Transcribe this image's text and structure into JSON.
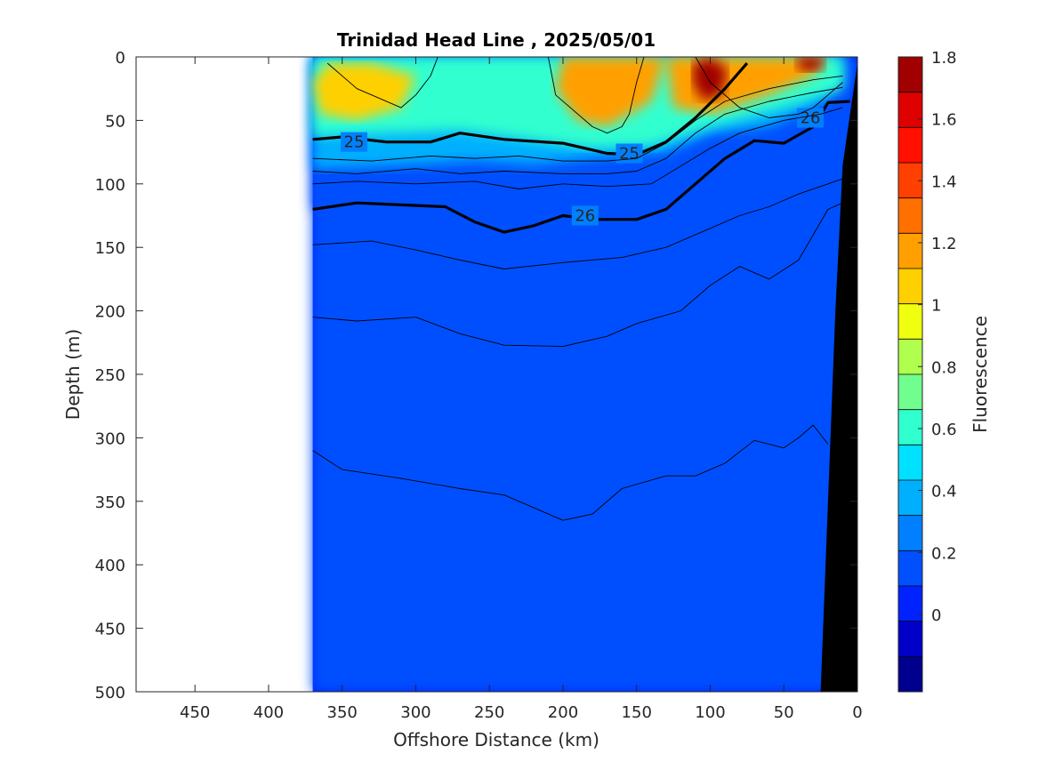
{
  "chart_data": {
    "type": "heatmap",
    "title": "Trinidad Head Line , 2025/05/01",
    "xlabel": "Offshore Distance (km)",
    "ylabel": "Depth (m)",
    "xlim": [
      490,
      0
    ],
    "ylim": [
      0,
      500
    ],
    "x_reversed": true,
    "y_reversed": true,
    "x_ticks": [
      "450",
      "400",
      "350",
      "300",
      "250",
      "200",
      "150",
      "100",
      "50",
      "0"
    ],
    "y_ticks": [
      "0",
      "50",
      "100",
      "150",
      "200",
      "250",
      "300",
      "350",
      "400",
      "450",
      "500"
    ],
    "data_extent_km": [
      370,
      0
    ],
    "colorbar": {
      "label": "Fluorescence",
      "range": [
        -0.25,
        1.8
      ],
      "ticks": [
        "1.8",
        "1.6",
        "1.4",
        "1.2",
        "1",
        "0.8",
        "0.6",
        "0.4",
        "0.2",
        "0"
      ],
      "colors": [
        "#00008f",
        "#0000c8",
        "#0022ff",
        "#0050ff",
        "#0080ff",
        "#00b0ff",
        "#00e0ff",
        "#30ffcf",
        "#70ff8f",
        "#b0ff4f",
        "#f0ff0f",
        "#ffd000",
        "#ffa000",
        "#ff7000",
        "#ff4000",
        "#ff1000",
        "#df0000",
        "#a00000"
      ]
    },
    "fill_regions": [
      {
        "name": "background",
        "value": 0.05,
        "outline": [
          [
            370,
            0
          ],
          [
            0,
            0
          ],
          [
            0,
            500
          ],
          [
            370,
            500
          ]
        ]
      },
      {
        "name": "deep-layer",
        "value": 0.1,
        "outline": [
          [
            370,
            0
          ],
          [
            0,
            0
          ],
          [
            0,
            500
          ],
          [
            370,
            500
          ]
        ]
      },
      {
        "name": "upper-mixed-layer",
        "value": 0.2,
        "outline": [
          [
            370,
            0
          ],
          [
            0,
            0
          ],
          [
            10,
            15
          ],
          [
            15,
            35
          ],
          [
            30,
            45
          ],
          [
            50,
            65
          ],
          [
            80,
            65
          ],
          [
            100,
            90
          ],
          [
            120,
            110
          ],
          [
            140,
            130
          ],
          [
            180,
            132
          ],
          [
            220,
            138
          ],
          [
            250,
            140
          ],
          [
            290,
            120
          ],
          [
            330,
            118
          ],
          [
            370,
            120
          ],
          [
            370,
            0
          ]
        ]
      },
      {
        "name": "surface-layer",
        "value": 0.35,
        "outline": [
          [
            370,
            0
          ],
          [
            10,
            0
          ],
          [
            10,
            20
          ],
          [
            30,
            40
          ],
          [
            60,
            55
          ],
          [
            100,
            60
          ],
          [
            130,
            75
          ],
          [
            180,
            80
          ],
          [
            220,
            85
          ],
          [
            260,
            82
          ],
          [
            300,
            85
          ],
          [
            340,
            87
          ],
          [
            370,
            88
          ],
          [
            370,
            0
          ]
        ]
      },
      {
        "name": "cyan-zone",
        "value": 0.6,
        "outline": [
          [
            370,
            0
          ],
          [
            10,
            0
          ],
          [
            10,
            25
          ],
          [
            50,
            40
          ],
          [
            100,
            55
          ],
          [
            140,
            70
          ],
          [
            180,
            72
          ],
          [
            230,
            64
          ],
          [
            270,
            58
          ],
          [
            320,
            60
          ],
          [
            370,
            62
          ],
          [
            370,
            0
          ]
        ]
      },
      {
        "name": "yellow-patch-west",
        "value": 1.1,
        "outline": [
          [
            360,
            5
          ],
          [
            330,
            5
          ],
          [
            300,
            15
          ],
          [
            310,
            40
          ],
          [
            340,
            50
          ],
          [
            365,
            45
          ],
          [
            370,
            20
          ]
        ]
      },
      {
        "name": "yellow-patch-center",
        "value": 1.15,
        "outline": [
          [
            200,
            0
          ],
          [
            130,
            0
          ],
          [
            140,
            35
          ],
          [
            170,
            55
          ],
          [
            190,
            50
          ],
          [
            205,
            25
          ]
        ]
      },
      {
        "name": "yellow-patch-east",
        "value": 1.2,
        "outline": [
          [
            130,
            0
          ],
          [
            20,
            0
          ],
          [
            30,
            15
          ],
          [
            60,
            30
          ],
          [
            100,
            45
          ],
          [
            125,
            40
          ]
        ]
      },
      {
        "name": "red-core-100km",
        "value": 1.7,
        "outline": [
          [
            112,
            5
          ],
          [
            100,
            0
          ],
          [
            88,
            10
          ],
          [
            92,
            30
          ],
          [
            105,
            35
          ],
          [
            112,
            20
          ]
        ]
      },
      {
        "name": "red-core-30km",
        "value": 1.7,
        "outline": [
          [
            42,
            0
          ],
          [
            22,
            0
          ],
          [
            25,
            10
          ],
          [
            38,
            12
          ]
        ]
      }
    ],
    "contours": [
      {
        "level": "25",
        "bold": true,
        "label_at": [
          [
            342,
            67
          ],
          [
            155,
            76
          ]
        ],
        "points": [
          [
            370,
            65
          ],
          [
            350,
            63
          ],
          [
            320,
            67
          ],
          [
            290,
            67
          ],
          [
            270,
            60
          ],
          [
            240,
            65
          ],
          [
            200,
            68
          ],
          [
            170,
            76
          ],
          [
            150,
            77
          ],
          [
            130,
            67
          ],
          [
            110,
            48
          ],
          [
            90,
            25
          ],
          [
            75,
            5
          ]
        ]
      },
      {
        "level": "26",
        "bold": true,
        "label_at": [
          [
            185,
            125
          ],
          [
            32,
            48
          ]
        ],
        "points": [
          [
            370,
            120
          ],
          [
            340,
            115
          ],
          [
            300,
            117
          ],
          [
            280,
            118
          ],
          [
            260,
            130
          ],
          [
            240,
            138
          ],
          [
            220,
            133
          ],
          [
            200,
            125
          ],
          [
            180,
            128
          ],
          [
            150,
            128
          ],
          [
            130,
            120
          ],
          [
            110,
            100
          ],
          [
            90,
            80
          ],
          [
            70,
            66
          ],
          [
            50,
            68
          ],
          [
            30,
            55
          ],
          [
            20,
            36
          ],
          [
            5,
            35
          ]
        ]
      },
      {
        "level": "",
        "bold": false,
        "points": [
          [
            370,
            80
          ],
          [
            330,
            82
          ],
          [
            290,
            78
          ],
          [
            260,
            80
          ],
          [
            230,
            78
          ],
          [
            200,
            82
          ],
          [
            170,
            82
          ],
          [
            150,
            80
          ],
          [
            130,
            68
          ],
          [
            110,
            50
          ],
          [
            90,
            35
          ],
          [
            60,
            25
          ],
          [
            30,
            18
          ],
          [
            10,
            15
          ]
        ]
      },
      {
        "level": "",
        "bold": false,
        "points": [
          [
            370,
            90
          ],
          [
            340,
            92
          ],
          [
            300,
            88
          ],
          [
            270,
            92
          ],
          [
            240,
            90
          ],
          [
            200,
            92
          ],
          [
            170,
            92
          ],
          [
            150,
            90
          ],
          [
            130,
            80
          ],
          [
            110,
            60
          ],
          [
            90,
            45
          ],
          [
            60,
            35
          ],
          [
            30,
            28
          ],
          [
            10,
            24
          ]
        ]
      },
      {
        "level": "",
        "bold": false,
        "points": [
          [
            370,
            100
          ],
          [
            340,
            98
          ],
          [
            300,
            100
          ],
          [
            260,
            98
          ],
          [
            230,
            104
          ],
          [
            200,
            100
          ],
          [
            170,
            102
          ],
          [
            140,
            100
          ],
          [
            120,
            86
          ],
          [
            100,
            72
          ],
          [
            80,
            60
          ],
          [
            50,
            50
          ],
          [
            25,
            45
          ],
          [
            10,
            40
          ]
        ]
      },
      {
        "level": "",
        "bold": false,
        "points": [
          [
            370,
            148
          ],
          [
            330,
            145
          ],
          [
            300,
            152
          ],
          [
            270,
            160
          ],
          [
            240,
            167
          ],
          [
            200,
            162
          ],
          [
            160,
            158
          ],
          [
            130,
            150
          ],
          [
            100,
            135
          ],
          [
            80,
            125
          ],
          [
            60,
            118
          ],
          [
            40,
            108
          ],
          [
            20,
            100
          ],
          [
            10,
            96
          ]
        ]
      },
      {
        "level": "",
        "bold": false,
        "points": [
          [
            370,
            205
          ],
          [
            340,
            208
          ],
          [
            300,
            205
          ],
          [
            270,
            218
          ],
          [
            240,
            227
          ],
          [
            200,
            228
          ],
          [
            170,
            220
          ],
          [
            150,
            210
          ],
          [
            120,
            200
          ],
          [
            100,
            180
          ],
          [
            80,
            165
          ],
          [
            60,
            175
          ],
          [
            40,
            160
          ],
          [
            20,
            120
          ],
          [
            10,
            115
          ]
        ]
      },
      {
        "level": "",
        "bold": false,
        "points": [
          [
            370,
            310
          ],
          [
            350,
            325
          ],
          [
            310,
            332
          ],
          [
            270,
            340
          ],
          [
            240,
            345
          ],
          [
            220,
            355
          ],
          [
            200,
            365
          ],
          [
            180,
            360
          ],
          [
            160,
            340
          ],
          [
            130,
            330
          ],
          [
            110,
            330
          ],
          [
            90,
            320
          ],
          [
            70,
            302
          ],
          [
            50,
            308
          ],
          [
            40,
            300
          ],
          [
            30,
            290
          ],
          [
            20,
            305
          ]
        ]
      },
      {
        "level": "",
        "bold": false,
        "points": [
          [
            360,
            5
          ],
          [
            340,
            25
          ],
          [
            310,
            40
          ],
          [
            300,
            30
          ],
          [
            290,
            15
          ],
          [
            285,
            0
          ]
        ]
      },
      {
        "level": "",
        "bold": false,
        "points": [
          [
            210,
            0
          ],
          [
            205,
            30
          ],
          [
            180,
            55
          ],
          [
            170,
            60
          ],
          [
            160,
            55
          ],
          [
            155,
            45
          ],
          [
            150,
            20
          ],
          [
            145,
            0
          ]
        ]
      },
      {
        "level": "",
        "bold": false,
        "points": [
          [
            110,
            0
          ],
          [
            100,
            20
          ],
          [
            80,
            40
          ],
          [
            60,
            48
          ],
          [
            40,
            45
          ],
          [
            30,
            40
          ],
          [
            20,
            30
          ],
          [
            10,
            20
          ]
        ]
      }
    ],
    "bathymetry": {
      "color": "#000000",
      "outline": [
        [
          25,
          500
        ],
        [
          0,
          500
        ],
        [
          0,
          5
        ],
        [
          10,
          85
        ],
        [
          15,
          200
        ],
        [
          20,
          350
        ]
      ]
    }
  }
}
